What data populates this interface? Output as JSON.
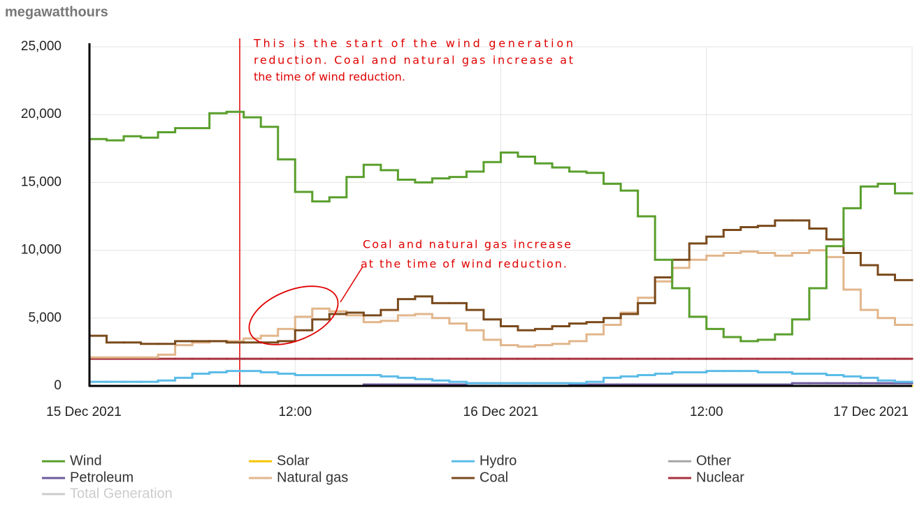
{
  "chart_data": {
    "type": "step",
    "y_label": "megawatthours",
    "x": [
      0,
      1,
      2,
      3,
      4,
      5,
      6,
      7,
      8,
      9,
      10,
      11,
      12,
      13,
      14,
      15,
      16,
      17,
      18,
      19,
      20,
      21,
      22,
      23,
      24,
      25,
      26,
      27,
      28,
      29,
      30,
      31,
      32,
      33,
      34,
      35,
      36,
      37,
      38,
      39,
      40,
      41,
      42,
      43,
      44,
      45,
      46,
      47
    ],
    "xlim": [
      0,
      48
    ],
    "xticks": [
      {
        "value": 0,
        "label": "15 Dec 2021"
      },
      {
        "value": 12,
        "label": "12:00"
      },
      {
        "value": 24,
        "label": "16 Dec 2021"
      },
      {
        "value": 36,
        "label": "12:00"
      },
      {
        "value": 48,
        "label": "17 Dec 2021"
      }
    ],
    "ylim": [
      0,
      25000
    ],
    "yticks": [
      0,
      {
        "value": 5000,
        "label": "5,000"
      },
      {
        "value": 10000,
        "label": "10,000"
      },
      {
        "value": 15000,
        "label": "15,000"
      },
      {
        "value": 20000,
        "label": "20,000"
      },
      {
        "value": 25000,
        "label": "25,000"
      }
    ],
    "grid": true,
    "series": [
      {
        "name": "Wind",
        "color": "#5a9f2d",
        "values": [
          18200,
          18100,
          18400,
          18300,
          18700,
          19000,
          19000,
          20100,
          20200,
          19800,
          19100,
          16700,
          14300,
          13600,
          13900,
          15400,
          16300,
          15900,
          15200,
          15000,
          15300,
          15400,
          15800,
          16500,
          17200,
          16900,
          16400,
          16100,
          15800,
          15700,
          14900,
          14400,
          12500,
          9300,
          7200,
          5100,
          4200,
          3600,
          3300,
          3400,
          3800,
          4900,
          7200,
          10300,
          13100,
          14700,
          14900,
          14200
        ]
      },
      {
        "name": "Solar",
        "color": "#f5c400",
        "values": [
          0,
          0,
          0,
          0,
          0,
          0,
          0,
          0,
          0,
          0,
          0,
          0,
          0,
          0,
          0,
          0,
          0,
          0,
          0,
          0,
          0,
          0,
          0,
          0,
          0,
          0,
          0,
          0,
          0,
          0,
          0,
          0,
          0,
          0,
          0,
          0,
          0,
          0,
          0,
          0,
          0,
          0,
          0,
          0,
          0,
          0,
          0,
          0
        ]
      },
      {
        "name": "Hydro",
        "color": "#5bbce8",
        "values": [
          300,
          300,
          300,
          300,
          400,
          600,
          900,
          1000,
          1100,
          1100,
          1000,
          900,
          800,
          800,
          800,
          800,
          800,
          700,
          600,
          500,
          400,
          300,
          200,
          200,
          200,
          200,
          200,
          200,
          200,
          300,
          600,
          700,
          800,
          900,
          1000,
          1000,
          1100,
          1100,
          1100,
          1000,
          1000,
          900,
          900,
          800,
          700,
          600,
          400,
          300
        ]
      },
      {
        "name": "Other",
        "color": "#a6a6a6",
        "values": [
          0,
          0,
          0,
          0,
          0,
          0,
          0,
          0,
          0,
          0,
          0,
          0,
          0,
          0,
          0,
          0,
          0,
          0,
          0,
          0,
          0,
          0,
          0,
          0,
          0,
          0,
          0,
          0,
          0,
          0,
          0,
          0,
          0,
          0,
          0,
          0,
          0,
          0,
          0,
          0,
          0,
          0,
          0,
          0,
          0,
          0,
          0,
          0
        ]
      },
      {
        "name": "Petroleum",
        "color": "#6c5a9e",
        "values": [
          0,
          0,
          0,
          0,
          0,
          0,
          0,
          0,
          0,
          0,
          0,
          0,
          0,
          0,
          0,
          0,
          100,
          100,
          100,
          100,
          100,
          100,
          200,
          200,
          200,
          200,
          200,
          200,
          100,
          100,
          100,
          100,
          100,
          100,
          100,
          100,
          100,
          100,
          100,
          100,
          100,
          200,
          200,
          200,
          200,
          200,
          200,
          200
        ]
      },
      {
        "name": "Natural gas",
        "color": "#e2b68c",
        "values": [
          2100,
          2100,
          2100,
          2100,
          2300,
          3000,
          3200,
          3300,
          3300,
          3500,
          3700,
          4200,
          5100,
          5700,
          5500,
          5200,
          4700,
          4800,
          5200,
          5300,
          5000,
          4600,
          4100,
          3400,
          3000,
          2900,
          3000,
          3100,
          3300,
          3800,
          4500,
          5400,
          6500,
          7700,
          8700,
          9300,
          9600,
          9800,
          9900,
          9800,
          9600,
          9800,
          10000,
          9500,
          7100,
          5600,
          5000,
          4500
        ]
      },
      {
        "name": "Coal",
        "color": "#7a4a1c",
        "values": [
          3700,
          3200,
          3200,
          3100,
          3100,
          3300,
          3300,
          3300,
          3200,
          3200,
          3200,
          3300,
          4100,
          4900,
          5300,
          5400,
          5200,
          5600,
          6400,
          6600,
          6100,
          6100,
          5600,
          4900,
          4400,
          4100,
          4200,
          4400,
          4600,
          4700,
          5000,
          5300,
          6100,
          8000,
          9300,
          10500,
          11000,
          11500,
          11700,
          11800,
          12200,
          12200,
          11600,
          10800,
          9800,
          8900,
          8200,
          7800
        ]
      },
      {
        "name": "Nuclear",
        "color": "#a8323f",
        "values": [
          2000,
          2000,
          2000,
          2000,
          2000,
          2000,
          2000,
          2000,
          2000,
          2000,
          2000,
          2000,
          2000,
          2000,
          2000,
          2000,
          2000,
          2000,
          2000,
          2000,
          2000,
          2000,
          2000,
          2000,
          2000,
          2000,
          2000,
          2000,
          2000,
          2000,
          2000,
          2000,
          2000,
          2000,
          2000,
          2000,
          2000,
          2000,
          2000,
          2000,
          2000,
          2000,
          2000,
          2000,
          2000,
          2000,
          2000,
          2000
        ]
      },
      {
        "name": "Total Generation",
        "color": "#cccccc",
        "visible": false
      }
    ],
    "annotations": [
      {
        "lines": [
          "This is the start of the wind generation",
          "reduction. Coal and natural gas increase at",
          "the time of wind reduction."
        ],
        "color": "#e00000"
      },
      {
        "lines": [
          "Coal and natural gas increase",
          "at the time of wind reduction."
        ],
        "color": "#e00000"
      }
    ]
  }
}
